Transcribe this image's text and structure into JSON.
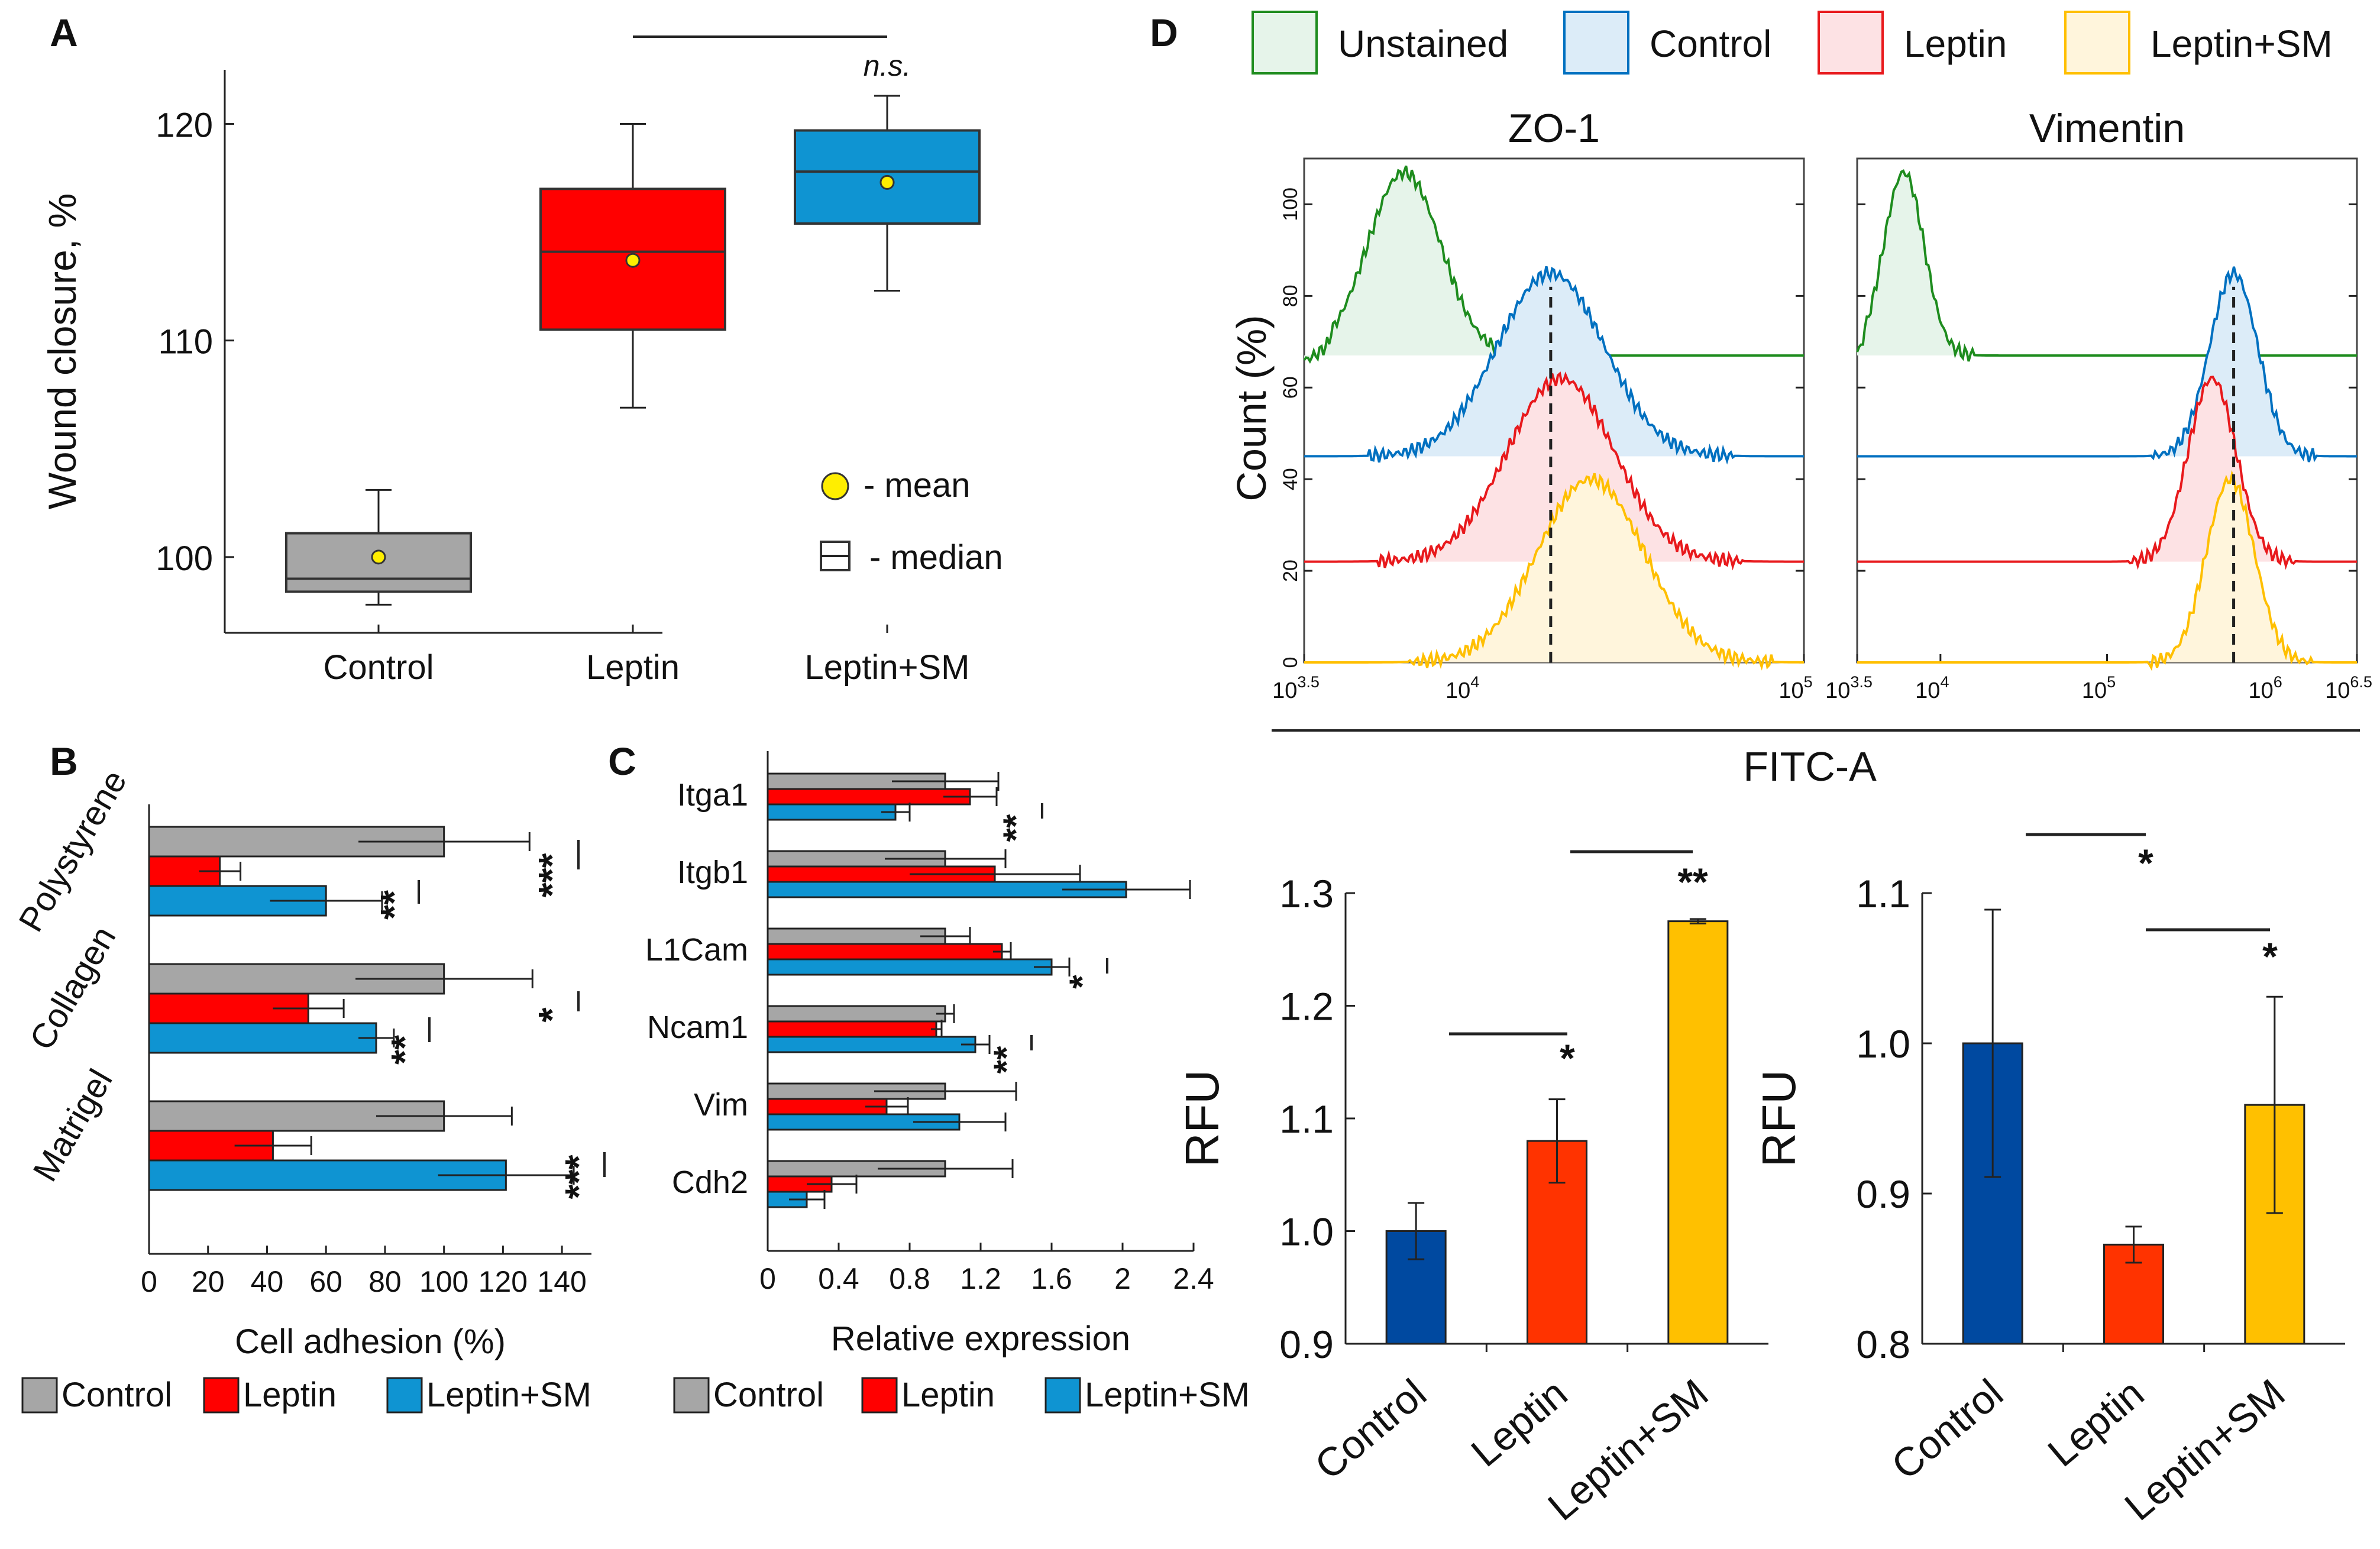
{
  "colors": {
    "control": "#a6a6a6",
    "leptin": "#ff0000",
    "leptin_sm": "#0f94d2",
    "navy": "#0049a0",
    "orange_red": "#ff3300",
    "gold": "#ffc000",
    "unstained": "#1e8c1e",
    "hist_control": "#0070c0",
    "hist_leptin": "#e8191c",
    "hist_lsm": "#ffbf00"
  },
  "chart_data": [
    {
      "id": "A",
      "panel_label": "A",
      "type": "box",
      "ylabel": "Wound closure, %",
      "ylim": [
        96.5,
        122.5
      ],
      "yticks": [
        100,
        110,
        120
      ],
      "categories": [
        "Control",
        "Leptin",
        "Leptin+SM"
      ],
      "boxes": [
        {
          "name": "Control",
          "whisker_low": 97.8,
          "q1": 98.4,
          "median": 99.0,
          "q3": 101.1,
          "whisker_high": 103.1,
          "mean": 100.0
        },
        {
          "name": "Leptin",
          "whisker_low": 106.9,
          "q1": 110.5,
          "median": 114.1,
          "q3": 117.0,
          "whisker_high": 120.0,
          "mean": 113.7
        },
        {
          "name": "Leptin+SM",
          "whisker_low": 112.3,
          "q1": 115.4,
          "median": 117.8,
          "q3": 119.7,
          "whisker_high": 121.3,
          "mean": 117.3
        }
      ],
      "annotation": "n.s.",
      "legend": {
        "mean": "- mean",
        "median": "- median"
      }
    },
    {
      "id": "B",
      "panel_label": "B",
      "type": "bar",
      "xlabel": "Cell adhesion (%)",
      "xlim": [
        0,
        150
      ],
      "xticks": [
        0,
        20,
        40,
        60,
        80,
        100,
        120,
        140
      ],
      "categories": [
        "Polystyrene",
        "Collagen",
        "Matrigel"
      ],
      "series": [
        {
          "name": "Control",
          "values": [
            100,
            100,
            100
          ],
          "errors": [
            29,
            30,
            23
          ]
        },
        {
          "name": "Leptin",
          "values": [
            24,
            54,
            42
          ],
          "errors": [
            7,
            12,
            13
          ]
        },
        {
          "name": "Leptin+SM",
          "values": [
            60,
            77,
            121
          ],
          "errors": [
            19,
            6,
            23
          ]
        }
      ],
      "significance": [
        {
          "category": "Polystyrene",
          "labels": [
            "***",
            "**"
          ]
        },
        {
          "category": "Collagen",
          "labels": [
            "*",
            "**"
          ]
        },
        {
          "category": "Matrigel",
          "labels": [
            "***"
          ]
        }
      ],
      "legend": [
        "Control",
        "Leptin",
        "Leptin+SM"
      ]
    },
    {
      "id": "C",
      "panel_label": "C",
      "type": "bar",
      "xlabel": "Relative expression",
      "xlim": [
        0,
        2.4
      ],
      "xticks": [
        "0",
        "0.4",
        "0.8",
        "1.2",
        "1.6",
        "2",
        "2.4"
      ],
      "categories": [
        "Itga1",
        "Itgb1",
        "L1Cam",
        "Ncam1",
        "Vim",
        "Cdh2"
      ],
      "series": [
        {
          "name": "Control",
          "values": [
            1.0,
            1.0,
            1.0,
            1.0,
            1.0,
            1.0
          ],
          "errors": [
            0.3,
            0.34,
            0.14,
            0.05,
            0.4,
            0.38
          ]
        },
        {
          "name": "Leptin",
          "values": [
            1.14,
            1.28,
            1.32,
            0.95,
            0.67,
            0.36
          ],
          "errors": [
            0.15,
            0.48,
            0.05,
            0.03,
            0.12,
            0.14
          ]
        },
        {
          "name": "Leptin+SM",
          "values": [
            0.72,
            2.02,
            1.6,
            1.17,
            1.08,
            0.22
          ],
          "errors": [
            0.08,
            0.36,
            0.1,
            0.08,
            0.26,
            0.1
          ]
        }
      ],
      "significance": [
        {
          "category": "Itga1",
          "label": "**"
        },
        {
          "category": "L1Cam",
          "label": "*"
        },
        {
          "category": "Ncam1",
          "label": "**"
        }
      ],
      "legend": [
        "Control",
        "Leptin",
        "Leptin+SM"
      ]
    },
    {
      "id": "D_hist",
      "panel_label": "D",
      "type": "area",
      "legend": [
        "Unstained",
        "Control",
        "Leptin",
        "Leptin+SM"
      ],
      "ylabel": "Count (%)",
      "yticks": [
        0,
        20,
        40,
        60,
        80,
        100
      ],
      "shared_xlabel": "FITC-A",
      "panels": [
        {
          "title": "ZO-1",
          "xlim_log10": [
            3.5,
            5
          ],
          "xtick_bases": [
            "10",
            "10",
            "10"
          ],
          "xtick_exps": [
            "3.5",
            "4",
            "5"
          ],
          "xtick_pos_log10": [
            3.5,
            4,
            5
          ],
          "dashed_line_log10": 4.24,
          "peaks_log10": {
            "Unstained": 3.8,
            "Control": 4.24,
            "Leptin": 4.27,
            "Leptin+SM": 4.36
          }
        },
        {
          "title": "Vimentin",
          "xlim_log10": [
            3.5,
            6.5
          ],
          "xtick_bases": [
            "10",
            "10",
            "10",
            "10",
            "10"
          ],
          "xtick_exps": [
            "3.5",
            "4",
            "5",
            "6",
            "6.5"
          ],
          "xtick_pos_log10": [
            3.5,
            4,
            5,
            6,
            6.5
          ],
          "dashed_line_log10": 5.76,
          "peaks_log10": {
            "Unstained": 3.78,
            "Control": 5.76,
            "Leptin": 5.63,
            "Leptin+SM": 5.74
          }
        }
      ]
    },
    {
      "id": "D_rfu_left",
      "type": "bar",
      "ylabel": "RFU",
      "ylim": [
        0.9,
        1.3
      ],
      "yticks": [
        "0.9",
        "1.0",
        "1.1",
        "1.2",
        "1.3"
      ],
      "categories": [
        "Control",
        "Leptin",
        "Leptin+SM"
      ],
      "values": [
        1.0,
        1.08,
        1.275
      ],
      "errors": [
        0.025,
        0.037,
        0.002
      ],
      "significance": [
        "*",
        "**"
      ]
    },
    {
      "id": "D_rfu_right",
      "type": "bar",
      "ylabel": "RFU",
      "ylim": [
        0.8,
        1.1
      ],
      "yticks": [
        "0.8",
        "0.9",
        "1.0",
        "1.1"
      ],
      "categories": [
        "Control",
        "Leptin",
        "Leptin+SM"
      ],
      "values": [
        1.0,
        0.866,
        0.959
      ],
      "errors": [
        0.089,
        0.012,
        0.072
      ],
      "significance": [
        "*",
        "*"
      ]
    }
  ]
}
